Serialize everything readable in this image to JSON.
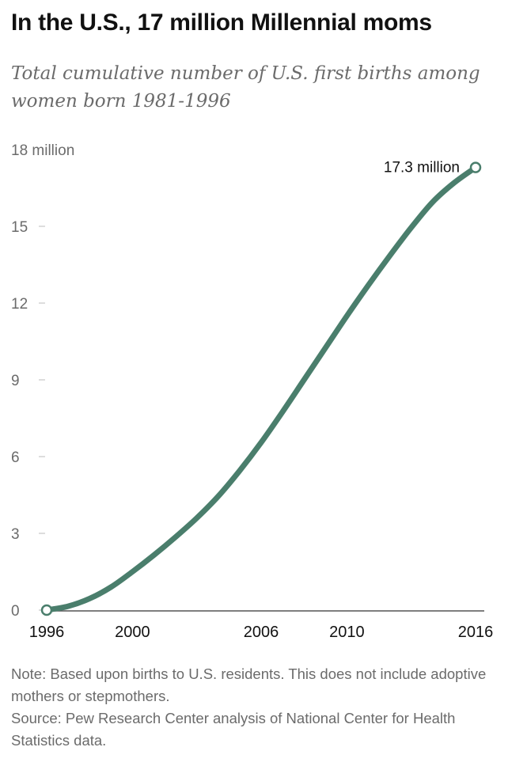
{
  "chart_data": {
    "type": "line",
    "title": "In the U.S., 17 million Millennial moms",
    "subtitle": "Total cumulative number of U.S. first births among women born 1981-1996",
    "ylabel": "",
    "xlabel": "",
    "x_ticks": [
      "1996",
      "2000",
      "2006",
      "2010",
      "2016"
    ],
    "y_ticks": [
      "0",
      "3",
      "6",
      "9",
      "12",
      "15",
      "18 million"
    ],
    "xlim": [
      1996,
      2016
    ],
    "ylim": [
      0,
      18
    ],
    "grid": false,
    "color": "#4a7e6c",
    "series": [
      {
        "name": "",
        "x": [
          1996,
          1997,
          1998,
          1999,
          2000,
          2001,
          2002,
          2003,
          2004,
          2005,
          2006,
          2007,
          2008,
          2009,
          2010,
          2011,
          2012,
          2013,
          2014,
          2015,
          2016
        ],
        "y": [
          0.0,
          0.15,
          0.45,
          0.9,
          1.5,
          2.15,
          2.85,
          3.6,
          4.45,
          5.45,
          6.55,
          7.75,
          9.0,
          10.25,
          11.5,
          12.7,
          13.85,
          14.95,
          15.95,
          16.7,
          17.3
        ]
      }
    ],
    "annotations": [
      {
        "x": 2016,
        "y": 17.3,
        "text": "17.3 million"
      }
    ],
    "notes": [
      "Note: Based upon births to U.S. residents. This does not include adoptive mothers or stepmothers.",
      "Source: Pew Research Center analysis of National Center for Health Statistics data."
    ]
  }
}
